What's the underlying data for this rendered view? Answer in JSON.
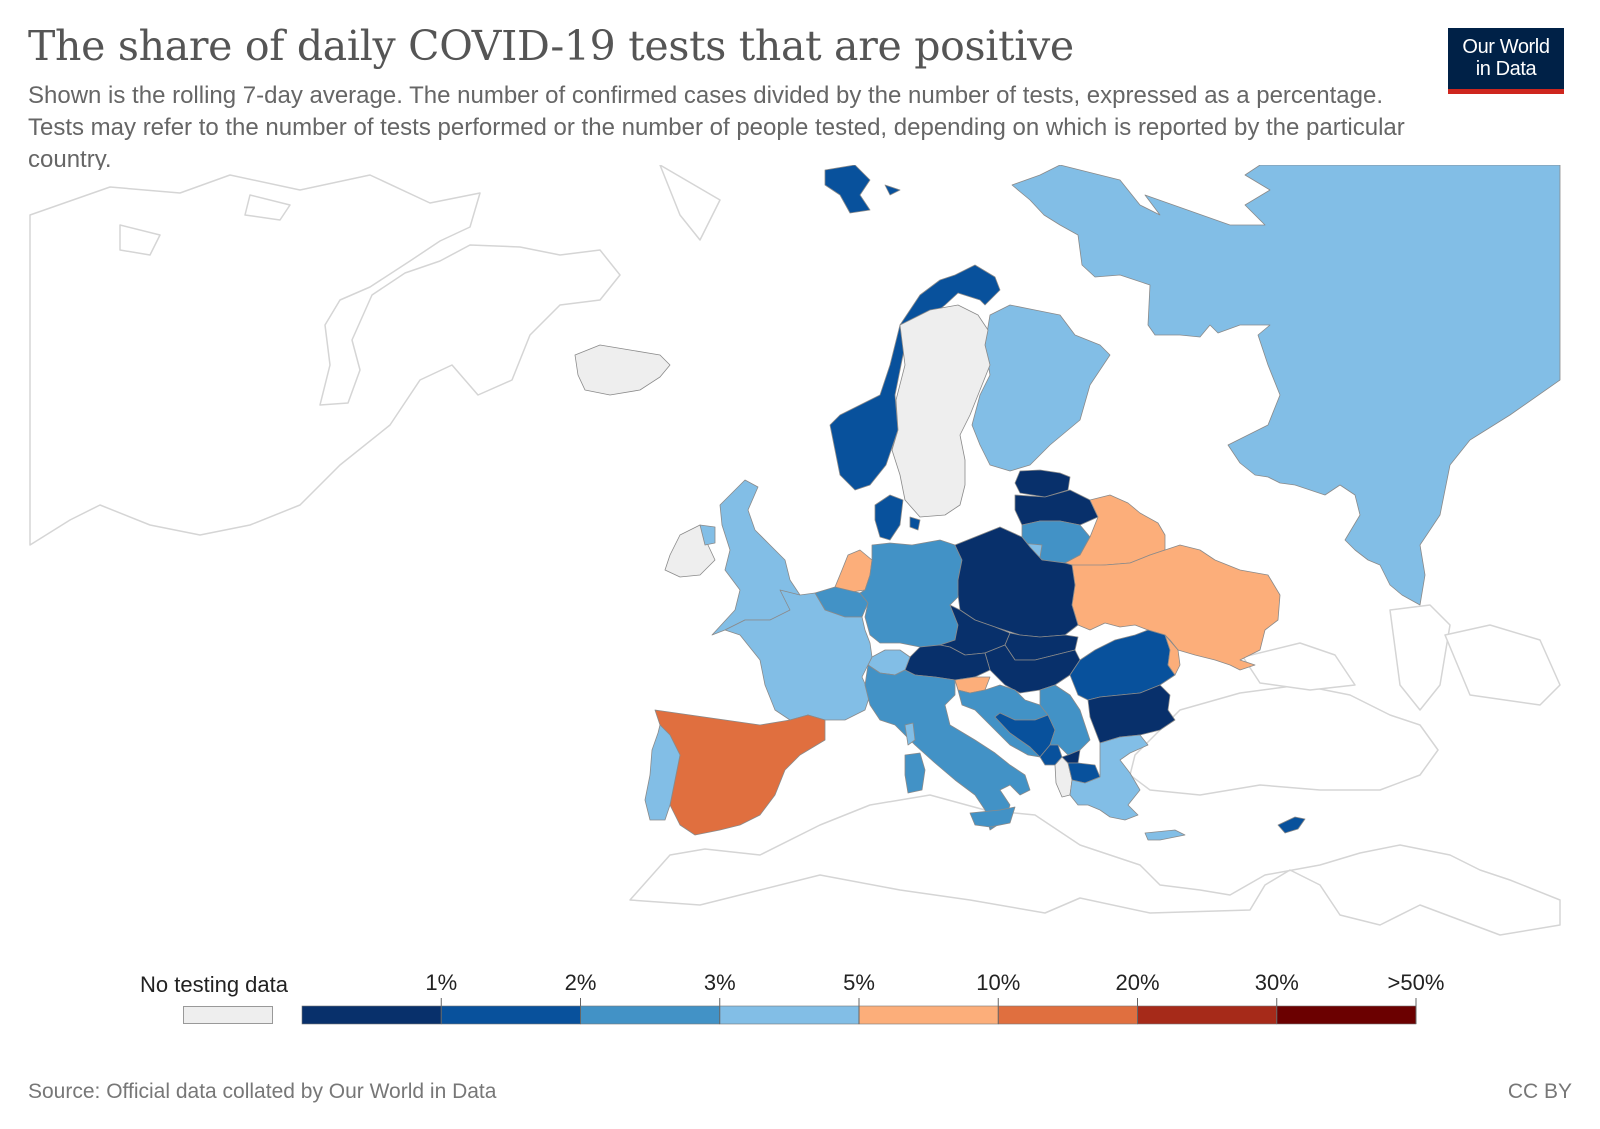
{
  "title": "The share of daily COVID-19 tests that are positive",
  "subtitle": "Shown is the rolling 7-day average. The number of confirmed cases divided by the number of tests, expressed as a percentage. Tests may refer to the number of tests performed or the number of people tested, depending on which is reported by the particular country.",
  "logo": {
    "line1": "Our World",
    "line2": "in Data"
  },
  "colors": {
    "no_data": "#eeeeee",
    "outline": "#d0d0d0",
    "accent_red": "#ce261e",
    "logo_bg": "#002147",
    "scale": [
      "#08306b",
      "#08519c",
      "#4292c6",
      "#82bee6",
      "#fcae7a",
      "#e06f3f",
      "#a62a19",
      "#6b0000"
    ]
  },
  "legend": {
    "no_data_label": "No testing data",
    "ticks": [
      "1%",
      "2%",
      "3%",
      "5%",
      "10%",
      "20%",
      "30%",
      ">50%"
    ]
  },
  "regions": [
    {
      "name": "Russia",
      "bin": 3
    },
    {
      "name": "Finland",
      "bin": 3
    },
    {
      "name": "Norway",
      "bin": 1
    },
    {
      "name": "Svalbard",
      "bin": 1
    },
    {
      "name": "Sweden",
      "bin": -1
    },
    {
      "name": "Iceland",
      "bin": -1
    },
    {
      "name": "Ireland",
      "bin": -1
    },
    {
      "name": "Northern Ireland",
      "bin": 3
    },
    {
      "name": "United Kingdom",
      "bin": 3
    },
    {
      "name": "Denmark",
      "bin": 1
    },
    {
      "name": "Estonia",
      "bin": 0
    },
    {
      "name": "Latvia",
      "bin": 0
    },
    {
      "name": "Lithuania",
      "bin": 2
    },
    {
      "name": "Kaliningrad",
      "bin": 3
    },
    {
      "name": "Belarus",
      "bin": 4
    },
    {
      "name": "Ukraine",
      "bin": 4
    },
    {
      "name": "Netherlands",
      "bin": 4
    },
    {
      "name": "Belgium",
      "bin": 2
    },
    {
      "name": "Germany",
      "bin": 2
    },
    {
      "name": "Poland",
      "bin": 0
    },
    {
      "name": "Czechia",
      "bin": 0
    },
    {
      "name": "Slovakia",
      "bin": 0
    },
    {
      "name": "Hungary",
      "bin": 0
    },
    {
      "name": "Austria",
      "bin": 0
    },
    {
      "name": "Switzerland",
      "bin": 3
    },
    {
      "name": "France",
      "bin": 3
    },
    {
      "name": "Spain",
      "bin": 5
    },
    {
      "name": "Portugal",
      "bin": 3
    },
    {
      "name": "Italy",
      "bin": 2
    },
    {
      "name": "Sardinia",
      "bin": 2
    },
    {
      "name": "Corsica",
      "bin": 3
    },
    {
      "name": "Sicily",
      "bin": 2
    },
    {
      "name": "Slovenia",
      "bin": 4
    },
    {
      "name": "Croatia",
      "bin": 2
    },
    {
      "name": "Bosnia and Herzegovina",
      "bin": 1
    },
    {
      "name": "Serbia",
      "bin": 2
    },
    {
      "name": "Montenegro",
      "bin": 1
    },
    {
      "name": "Albania",
      "bin": -1
    },
    {
      "name": "Kosovo",
      "bin": 0
    },
    {
      "name": "North Macedonia",
      "bin": 1
    },
    {
      "name": "Romania",
      "bin": 1
    },
    {
      "name": "Moldova",
      "bin": 4
    },
    {
      "name": "Bulgaria",
      "bin": 0
    },
    {
      "name": "Greece",
      "bin": 3
    },
    {
      "name": "Crete",
      "bin": 3
    },
    {
      "name": "Cyprus",
      "bin": 1
    }
  ],
  "source": "Source: Official data collated by Our World in Data",
  "license": "CC BY"
}
